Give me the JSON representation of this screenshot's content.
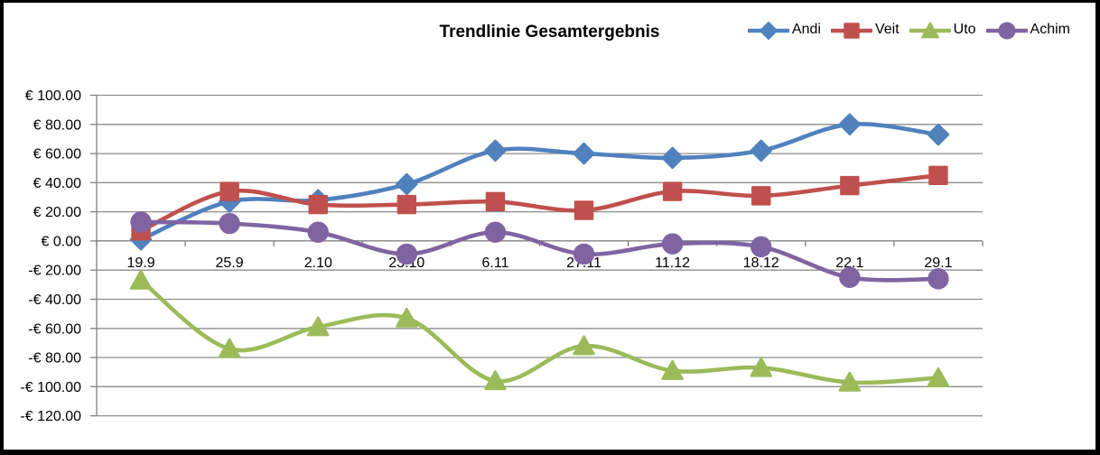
{
  "chart_data": {
    "type": "line",
    "title": "Trendlinie Gesamtergebnis",
    "categories": [
      "19.9",
      "25.9",
      "2.10",
      "23.10",
      "6.11",
      "27.11",
      "11.12",
      "18.12",
      "22.1",
      "29.1"
    ],
    "series": [
      {
        "name": "Andi",
        "color": "#4F81BD",
        "marker": "diamond",
        "values": [
          1,
          27,
          28,
          39,
          62,
          60,
          57,
          62,
          80,
          73
        ]
      },
      {
        "name": "Veit",
        "color": "#C0504D",
        "marker": "square",
        "values": [
          7,
          34,
          25,
          25,
          27,
          21,
          34,
          31,
          38,
          45
        ]
      },
      {
        "name": "Uto",
        "color": "#9BBB59",
        "marker": "triangle",
        "values": [
          -27,
          -74,
          -59,
          -53,
          -96,
          -72,
          -89,
          -87,
          -97,
          -94
        ]
      },
      {
        "name": "Achim",
        "color": "#8064A2",
        "marker": "circle",
        "values": [
          13,
          12,
          6,
          -9,
          6,
          -9,
          -2,
          -4,
          -25,
          -26
        ]
      }
    ],
    "y_ticks": [
      100,
      80,
      60,
      40,
      20,
      0,
      -20,
      -40,
      -60,
      -80,
      -100,
      -120
    ],
    "y_tick_labels": [
      "€ 100.00",
      "€ 80.00",
      "€ 60.00",
      "€ 40.00",
      "€ 20.00",
      "€ 0.00",
      "-€ 20.00",
      "-€ 40.00",
      "-€ 60.00",
      "-€ 80.00",
      "-€ 100.00",
      "-€ 120.00"
    ],
    "ylim": [
      -120,
      100
    ],
    "xlabel": "",
    "ylabel": "",
    "grid": true,
    "smooth": true,
    "legend_position": "top-right"
  },
  "styles": {
    "grid_color": "#8E8E8E",
    "axis_color": "#808080",
    "text_color": "#000000",
    "background": "#FFFFFF",
    "frame_border": "#000000"
  }
}
